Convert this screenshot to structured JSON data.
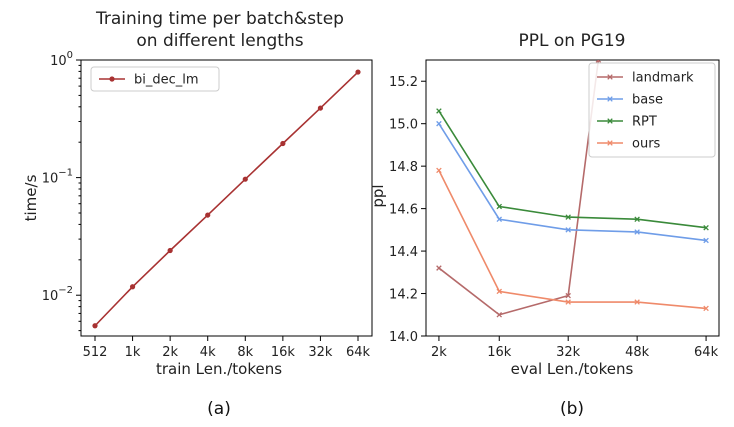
{
  "chart_data": [
    {
      "type": "line",
      "title_lines": [
        "Training time per batch&step",
        "on different lengths"
      ],
      "xlabel": "train Len./tokens",
      "ylabel": "time/s",
      "yscale": "log",
      "ylim": [
        0.0045,
        1.0
      ],
      "yticks": [
        {
          "value": 1.0,
          "base": "10",
          "exp": "0"
        },
        {
          "value": 0.1,
          "base": "10",
          "exp": "−1"
        },
        {
          "value": 0.01,
          "base": "10",
          "exp": "−2"
        }
      ],
      "categories": [
        "512",
        "1k",
        "2k",
        "4k",
        "8k",
        "16k",
        "32k",
        "64k"
      ],
      "series": [
        {
          "name": "bi_dec_lm",
          "color": "#a83232",
          "marker": "circle",
          "values": [
            0.0055,
            0.0118,
            0.024,
            0.048,
            0.097,
            0.195,
            0.39,
            0.79
          ]
        }
      ],
      "legend_position": "top-left",
      "panel_label": "(a)"
    },
    {
      "type": "line",
      "title": "PPL on PG19",
      "xlabel": "eval Len./tokens",
      "ylabel": "ppl",
      "yscale": "linear",
      "ylim": [
        14.0,
        15.3
      ],
      "yticks": [
        14.0,
        14.2,
        14.4,
        14.6,
        14.8,
        15.0,
        15.2
      ],
      "ytick_labels": [
        "14.0",
        "14.2",
        "14.4",
        "14.6",
        "14.8",
        "15.0",
        "15.2"
      ],
      "xticks": [
        "2k",
        "16k",
        "32k",
        "48k",
        "64k"
      ],
      "series": [
        {
          "name": "landmark",
          "color": "#b56a6a",
          "marker": "x",
          "x": [
            2,
            16,
            32,
            39
          ],
          "y": [
            14.32,
            14.1,
            14.19,
            15.3
          ]
        },
        {
          "name": "base",
          "color": "#6f9de8",
          "marker": "x",
          "x": [
            2,
            16,
            32,
            48,
            64
          ],
          "y": [
            15.0,
            14.55,
            14.5,
            14.49,
            14.45
          ]
        },
        {
          "name": "RPT",
          "color": "#3a8a3a",
          "marker": "x",
          "x": [
            2,
            16,
            32,
            48,
            64
          ],
          "y": [
            15.06,
            14.61,
            14.56,
            14.55,
            14.51
          ]
        },
        {
          "name": "ours",
          "color": "#ef8a6a",
          "marker": "x",
          "x": [
            2,
            16,
            32,
            48,
            64
          ],
          "y": [
            14.78,
            14.21,
            14.16,
            14.16,
            14.13
          ]
        }
      ],
      "legend_position": "top-right",
      "panel_label": "(b)"
    }
  ]
}
